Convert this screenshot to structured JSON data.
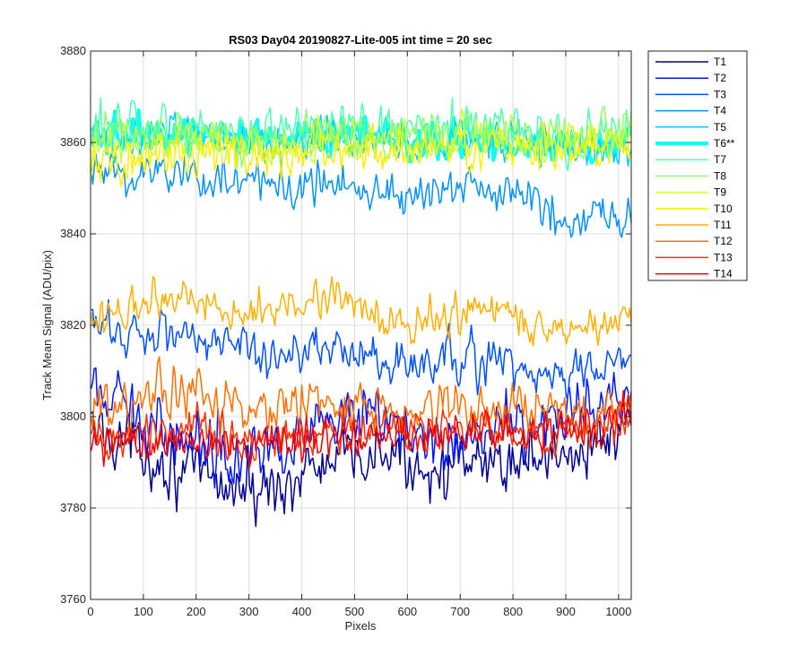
{
  "chart_data": {
    "type": "line",
    "title": "RS03 Day04 20190827-Lite-005 int time = 20 sec",
    "xlabel": "Pixels",
    "ylabel": "Track Mean Signal (ADU/pix)",
    "xlim": [
      0,
      1024
    ],
    "ylim": [
      3760,
      3880
    ],
    "xticks": [
      "0",
      "100",
      "200",
      "300",
      "400",
      "500",
      "600",
      "700",
      "800",
      "900",
      "1000"
    ],
    "yticks": [
      "3760",
      "3780",
      "3800",
      "3820",
      "3840",
      "3860",
      "3880"
    ],
    "grid": true,
    "legend_position": "outside-top-right",
    "x_step": 3,
    "series": [
      {
        "name": "T1",
        "color": "#00008f",
        "width": 1.5,
        "base": [
          3797,
          3795,
          3790,
          3787,
          3784,
          3784,
          3788,
          3790,
          3792,
          3790,
          3788,
          3789,
          3791,
          3792,
          3794,
          3796
        ],
        "noise": 4.5
      },
      {
        "name": "T2",
        "color": "#0014ff",
        "width": 1.5,
        "base": [
          3805,
          3801,
          3797,
          3795,
          3793,
          3794,
          3796,
          3798,
          3799,
          3797,
          3795,
          3797,
          3799,
          3800,
          3801,
          3803
        ],
        "noise": 4.5
      },
      {
        "name": "T3",
        "color": "#0050ff",
        "width": 1.5,
        "base": [
          3820,
          3818,
          3819,
          3818,
          3815,
          3813,
          3816,
          3815,
          3812,
          3810,
          3813,
          3812,
          3810,
          3808,
          3811,
          3813
        ],
        "noise": 3.5
      },
      {
        "name": "T4",
        "color": "#0090ff",
        "width": 1.5,
        "base": [
          3853,
          3853,
          3854,
          3853,
          3851,
          3850,
          3852,
          3852,
          3850,
          3848,
          3849,
          3849,
          3848,
          3845,
          3843,
          3846
        ],
        "noise": 3.5
      },
      {
        "name": "T5",
        "color": "#00cfff",
        "width": 1.5,
        "base": [
          3860,
          3861,
          3862,
          3862,
          3861,
          3860,
          3861,
          3861,
          3860,
          3860,
          3861,
          3861,
          3860,
          3859,
          3858,
          3859
        ],
        "noise": 3.0
      },
      {
        "name": "T6**",
        "color": "#10ffef",
        "width": 4,
        "base": [
          3861,
          3862,
          3862,
          3862,
          3861,
          3861,
          3861,
          3862,
          3861,
          3860,
          3861,
          3861,
          3860,
          3860,
          3859,
          3860
        ],
        "noise": 2.5
      },
      {
        "name": "T7",
        "color": "#50ffaf",
        "width": 1.5,
        "base": [
          3862,
          3863,
          3864,
          3864,
          3863,
          3862,
          3863,
          3863,
          3862,
          3862,
          3863,
          3864,
          3863,
          3862,
          3862,
          3864
        ],
        "noise": 3.5
      },
      {
        "name": "T8",
        "color": "#8fff70",
        "width": 1.5,
        "base": [
          3861,
          3861,
          3862,
          3862,
          3861,
          3861,
          3862,
          3862,
          3861,
          3861,
          3862,
          3862,
          3862,
          3861,
          3861,
          3863
        ],
        "noise": 3.0
      },
      {
        "name": "T9",
        "color": "#cfff30",
        "width": 1.5,
        "base": [
          3858,
          3859,
          3860,
          3860,
          3859,
          3859,
          3860,
          3860,
          3860,
          3860,
          3861,
          3861,
          3861,
          3860,
          3860,
          3862
        ],
        "noise": 3.0
      },
      {
        "name": "T10",
        "color": "#ffef00",
        "width": 1.5,
        "base": [
          3854,
          3856,
          3858,
          3858,
          3857,
          3857,
          3858,
          3858,
          3858,
          3858,
          3859,
          3859,
          3859,
          3858,
          3858,
          3860
        ],
        "noise": 3.5
      },
      {
        "name": "T11",
        "color": "#ffb000",
        "width": 1.5,
        "base": [
          3822,
          3824,
          3826,
          3825,
          3822,
          3823,
          3826,
          3827,
          3822,
          3820,
          3824,
          3825,
          3822,
          3820,
          3820,
          3822
        ],
        "noise": 3.0
      },
      {
        "name": "T12",
        "color": "#ff7000",
        "width": 1.5,
        "base": [
          3801,
          3803,
          3806,
          3805,
          3802,
          3800,
          3803,
          3804,
          3802,
          3800,
          3803,
          3802,
          3801,
          3800,
          3801,
          3803
        ],
        "noise": 3.5
      },
      {
        "name": "T13",
        "color": "#ff3000",
        "width": 1.5,
        "base": [
          3795,
          3796,
          3797,
          3797,
          3795,
          3795,
          3796,
          3797,
          3797,
          3797,
          3797,
          3796,
          3796,
          3796,
          3797,
          3800
        ],
        "noise": 3.0
      },
      {
        "name": "T14",
        "color": "#ef0000",
        "width": 1.5,
        "base": [
          3793,
          3794,
          3795,
          3795,
          3793,
          3794,
          3795,
          3796,
          3796,
          3797,
          3797,
          3796,
          3797,
          3797,
          3798,
          3801
        ],
        "noise": 3.0
      }
    ]
  }
}
